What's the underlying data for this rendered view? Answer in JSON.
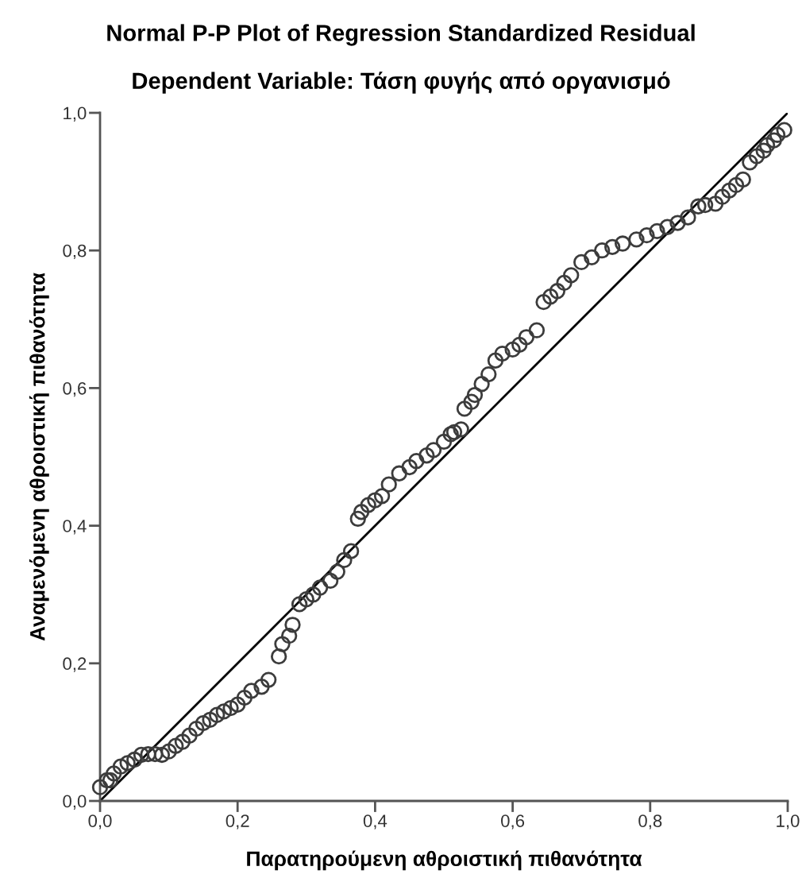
{
  "chart_data": {
    "type": "scatter",
    "title": "Normal P-P Plot of Regression Standardized Residual",
    "subtitle": "Dependent Variable: Τάση φυγής από οργανισμό",
    "xlabel": "Παρατηρούμενη αθροιστική πιθανότητα",
    "ylabel": "Αναμενόμενη αθροιστική πιθανότητα",
    "xlim": [
      0,
      1
    ],
    "ylim": [
      0,
      1
    ],
    "xticks": [
      {
        "value": 0,
        "label": "0,0"
      },
      {
        "value": 0.2,
        "label": "0,2"
      },
      {
        "value": 0.4,
        "label": "0,4"
      },
      {
        "value": 0.6,
        "label": "0,6"
      },
      {
        "value": 0.8,
        "label": "0,8"
      },
      {
        "value": 1,
        "label": "1,0"
      }
    ],
    "yticks": [
      {
        "value": 0,
        "label": "0,0"
      },
      {
        "value": 0.2,
        "label": "0,2"
      },
      {
        "value": 0.4,
        "label": "0,4"
      },
      {
        "value": 0.6,
        "label": "0,6"
      },
      {
        "value": 0.8,
        "label": "0,8"
      },
      {
        "value": 1,
        "label": "1,0"
      }
    ],
    "grid": false,
    "marker": "circle",
    "series": [
      {
        "color": "#3c3c3c",
        "x": [
          0.0,
          0.01,
          0.015,
          0.02,
          0.03,
          0.04,
          0.05,
          0.06,
          0.07,
          0.08,
          0.09,
          0.1,
          0.11,
          0.12,
          0.13,
          0.14,
          0.15,
          0.16,
          0.17,
          0.18,
          0.19,
          0.2,
          0.21,
          0.22,
          0.235,
          0.245,
          0.26,
          0.265,
          0.275,
          0.28,
          0.29,
          0.3,
          0.31,
          0.32,
          0.335,
          0.345,
          0.355,
          0.365,
          0.375,
          0.38,
          0.39,
          0.4,
          0.41,
          0.42,
          0.435,
          0.45,
          0.46,
          0.475,
          0.485,
          0.5,
          0.51,
          0.515,
          0.525,
          0.53,
          0.54,
          0.545,
          0.555,
          0.565,
          0.575,
          0.585,
          0.6,
          0.61,
          0.62,
          0.635,
          0.645,
          0.655,
          0.665,
          0.675,
          0.685,
          0.7,
          0.715,
          0.73,
          0.745,
          0.76,
          0.78,
          0.795,
          0.81,
          0.825,
          0.84,
          0.855,
          0.87,
          0.88,
          0.895,
          0.905,
          0.915,
          0.925,
          0.935,
          0.945,
          0.955,
          0.965,
          0.97,
          0.98,
          0.985,
          0.995
        ],
        "values": [
          0.02,
          0.03,
          0.03,
          0.04,
          0.05,
          0.055,
          0.06,
          0.067,
          0.068,
          0.068,
          0.067,
          0.072,
          0.08,
          0.086,
          0.095,
          0.105,
          0.113,
          0.118,
          0.125,
          0.13,
          0.135,
          0.14,
          0.15,
          0.16,
          0.166,
          0.176,
          0.21,
          0.228,
          0.24,
          0.256,
          0.286,
          0.293,
          0.3,
          0.31,
          0.32,
          0.333,
          0.35,
          0.363,
          0.41,
          0.42,
          0.43,
          0.437,
          0.443,
          0.46,
          0.476,
          0.485,
          0.494,
          0.502,
          0.51,
          0.522,
          0.533,
          0.536,
          0.54,
          0.57,
          0.58,
          0.59,
          0.606,
          0.62,
          0.64,
          0.65,
          0.656,
          0.663,
          0.674,
          0.684,
          0.725,
          0.733,
          0.741,
          0.753,
          0.764,
          0.783,
          0.79,
          0.8,
          0.805,
          0.81,
          0.816,
          0.822,
          0.828,
          0.834,
          0.84,
          0.848,
          0.864,
          0.866,
          0.868,
          0.878,
          0.887,
          0.895,
          0.903,
          0.928,
          0.937,
          0.945,
          0.953,
          0.96,
          0.968,
          0.975
        ]
      },
      {
        "type": "line",
        "color": "#000000",
        "x": [
          0,
          1
        ],
        "values": [
          0,
          1
        ],
        "marker": "none",
        "line_style": "solid"
      }
    ]
  }
}
